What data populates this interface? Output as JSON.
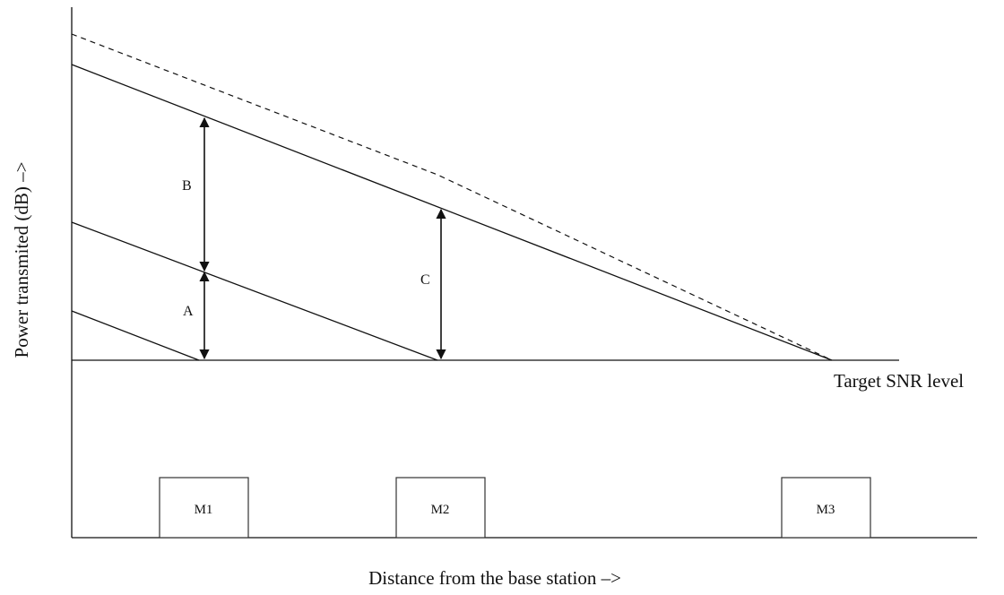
{
  "diagram": {
    "y_axis_label": "Power transmited (dB) –>",
    "x_axis_label": "Distance from the base station –>",
    "target_label": "Target SNR level",
    "arrows": {
      "a": "A",
      "b": "B",
      "c": "C"
    },
    "stations": {
      "m1": "M1",
      "m2": "M2",
      "m3": "M3"
    }
  }
}
